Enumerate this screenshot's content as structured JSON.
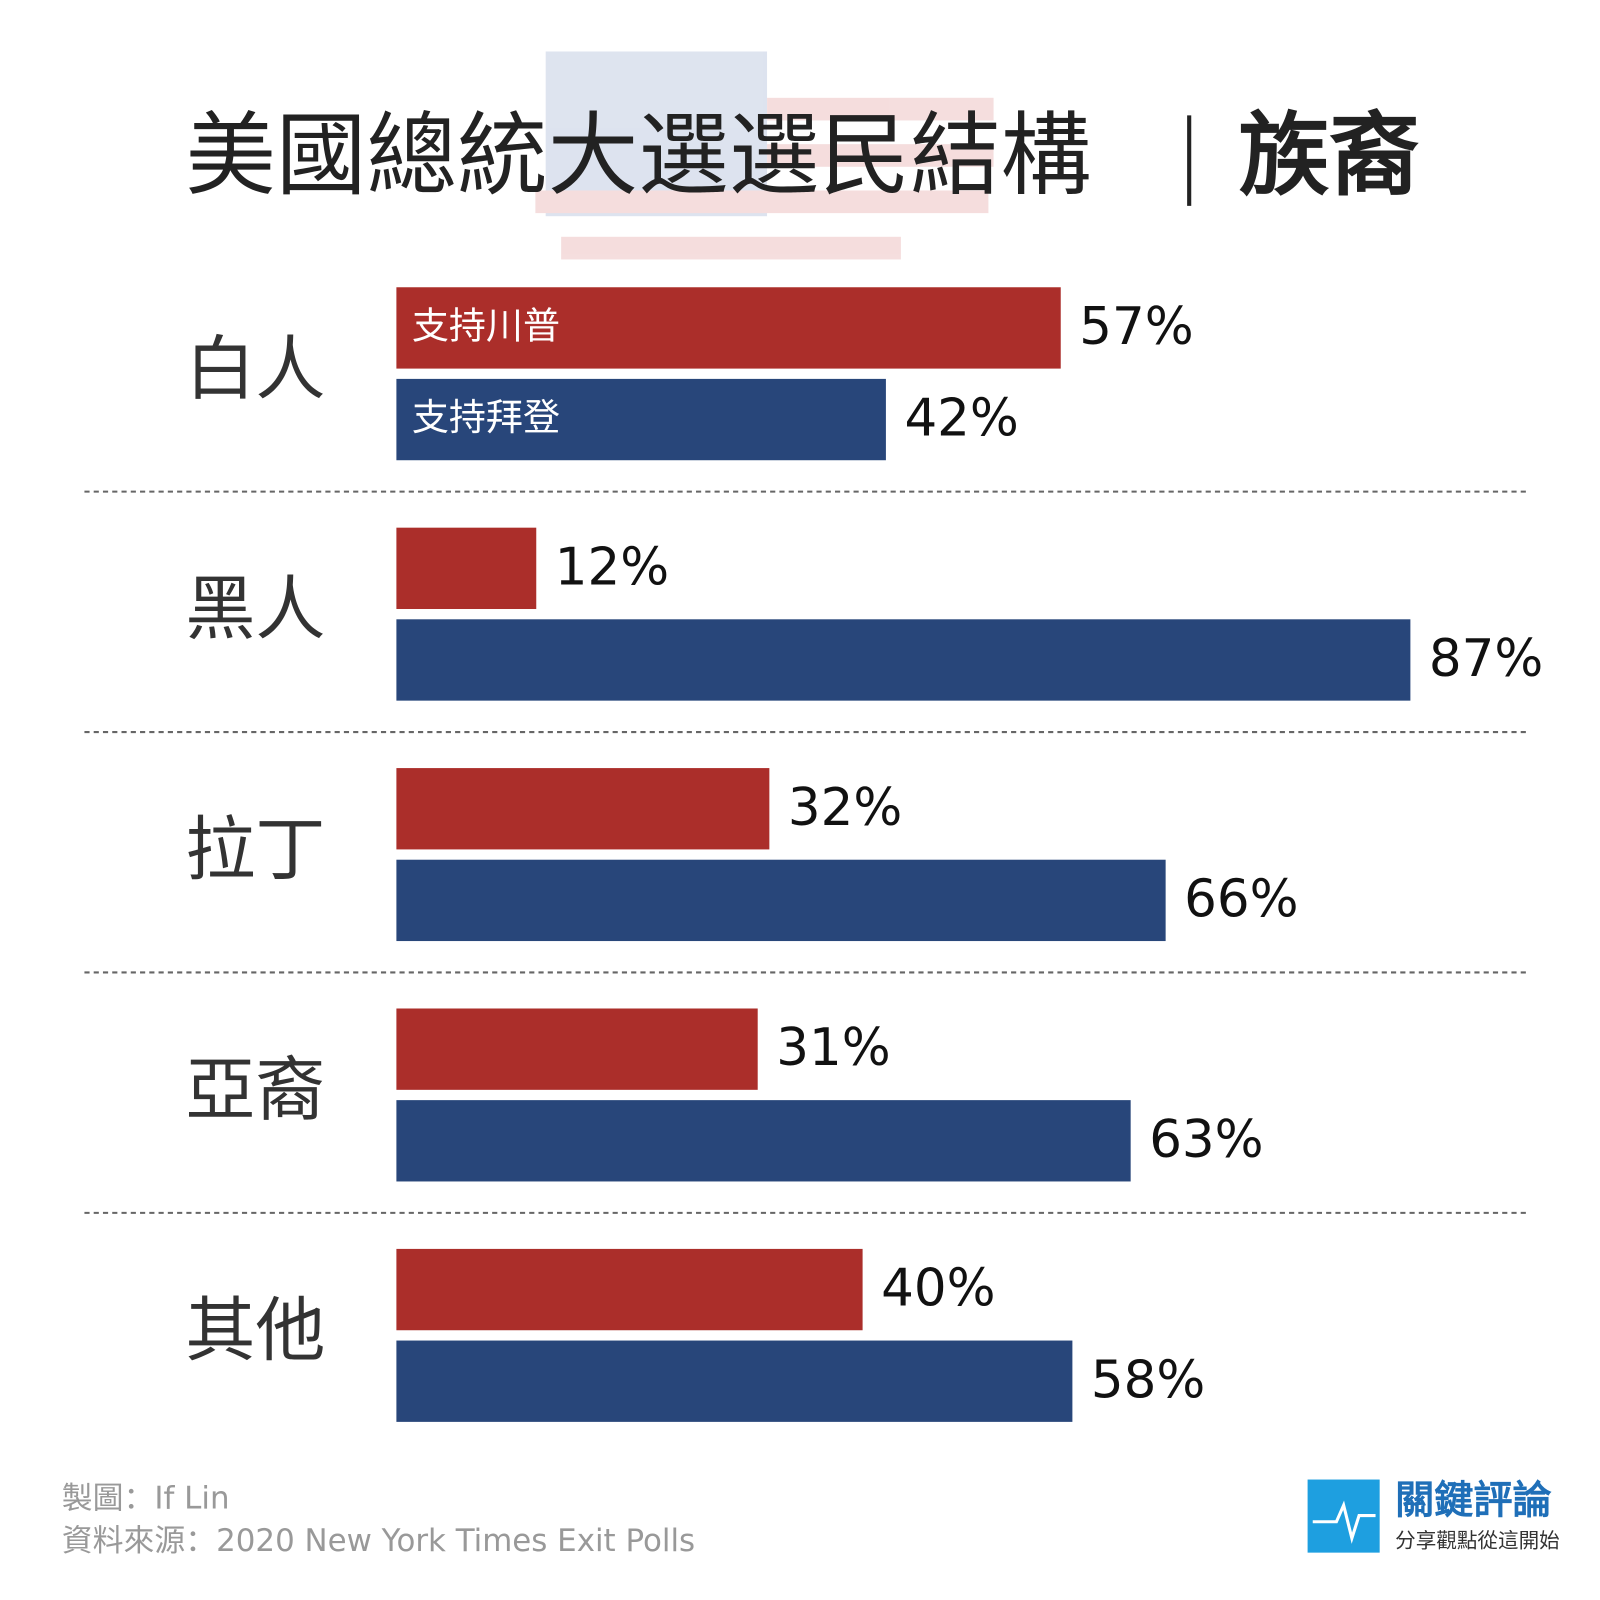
{
  "chart_data": {
    "type": "grouped-hbar",
    "title": "美國總統大選選民結構",
    "subtitle": "族裔",
    "categories": [
      "白人",
      "黑人",
      "拉丁",
      "亞裔",
      "其他"
    ],
    "series": [
      {
        "name": "支持川普",
        "color": "#ab2e2a",
        "values": [
          57,
          12,
          32,
          31,
          40
        ],
        "value_labels": [
          "57%",
          "12%",
          "32%",
          "31%",
          "40%"
        ]
      },
      {
        "name": "支持拜登",
        "color": "#28467a",
        "values": [
          42,
          87,
          66,
          63,
          58
        ],
        "value_labels": [
          "42%",
          "87%",
          "66%",
          "63%",
          "58%"
        ]
      }
    ],
    "credit": "製圖：If Lin",
    "source": "資料來源：2020 New York Times Exit Polls",
    "brand": {
      "name": "關鍵評論",
      "slogan": "分享觀點從這開始"
    }
  }
}
